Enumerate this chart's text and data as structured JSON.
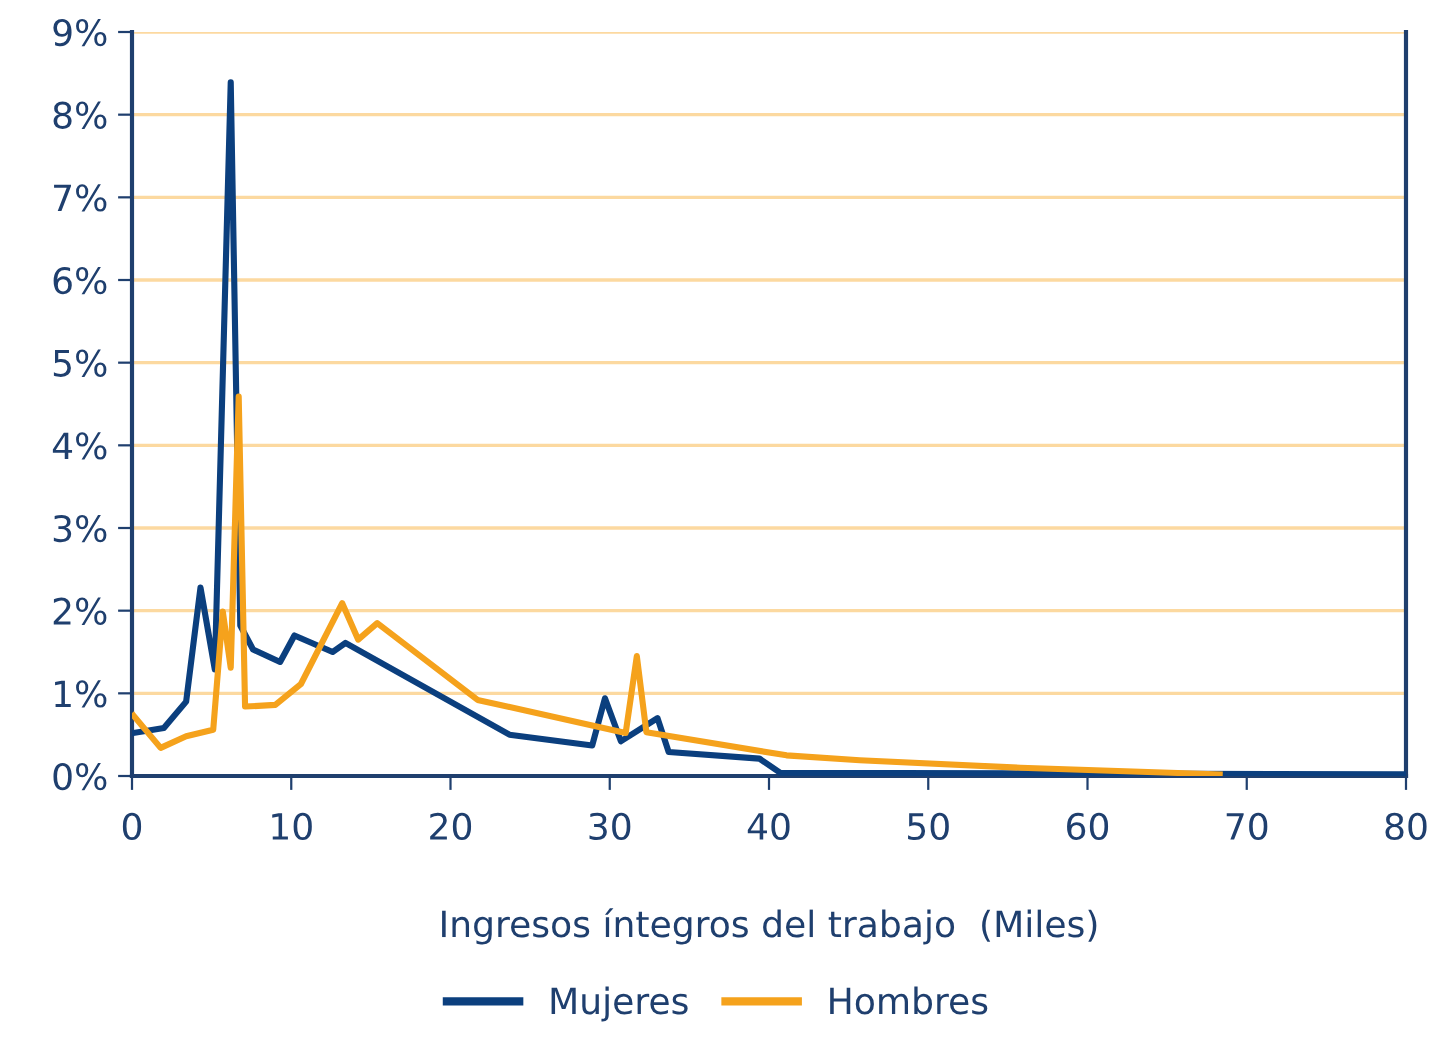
{
  "chart_data": {
    "type": "line",
    "xlabel": "Ingresos íntegros del trabajo  (Miles)",
    "xlim": [
      0,
      80
    ],
    "xticks": [
      0,
      10,
      20,
      30,
      40,
      50,
      60,
      70,
      80
    ],
    "ylim": [
      0,
      9
    ],
    "yticks": [
      {
        "value": 0,
        "label": "0%"
      },
      {
        "value": 1,
        "label": "1%"
      },
      {
        "value": 2,
        "label": "2%"
      },
      {
        "value": 3,
        "label": "3%"
      },
      {
        "value": 4,
        "label": "4%"
      },
      {
        "value": 5,
        "label": "5%"
      },
      {
        "value": 6,
        "label": "6%"
      },
      {
        "value": 7,
        "label": "7%"
      },
      {
        "value": 8,
        "label": "8%"
      },
      {
        "value": 9,
        "label": "9%"
      }
    ],
    "grid": "y",
    "legend": "bottom",
    "series": [
      {
        "name": "Mujeres",
        "color": "#0b3f7e",
        "x": [
          0.1,
          2.0,
          3.4,
          4.3,
          5.2,
          6.2,
          6.8,
          7.6,
          9.3,
          10.2,
          12.6,
          13.4,
          23.7,
          28.9,
          29.7,
          30.7,
          33.0,
          33.7,
          39.4,
          40.7,
          80
        ],
        "values": [
          0.52,
          0.58,
          0.9,
          2.28,
          1.29,
          8.39,
          1.82,
          1.53,
          1.38,
          1.7,
          1.5,
          1.61,
          0.5,
          0.37,
          0.94,
          0.42,
          0.7,
          0.29,
          0.21,
          0.04,
          0.02
        ]
      },
      {
        "name": "Hombres",
        "color": "#f5a21c",
        "x": [
          0.1,
          1.8,
          3.4,
          5.1,
          5.7,
          6.2,
          6.7,
          7.1,
          9.0,
          10.6,
          13.2,
          14.2,
          15.4,
          21.7,
          31.0,
          31.7,
          32.3,
          41.1,
          45.7,
          55.8,
          68.3
        ],
        "values": [
          0.73,
          0.34,
          0.48,
          0.56,
          1.99,
          1.31,
          4.59,
          0.84,
          0.86,
          1.11,
          2.09,
          1.65,
          1.85,
          0.92,
          0.52,
          1.45,
          0.53,
          0.25,
          0.19,
          0.1,
          0.02
        ]
      }
    ]
  }
}
